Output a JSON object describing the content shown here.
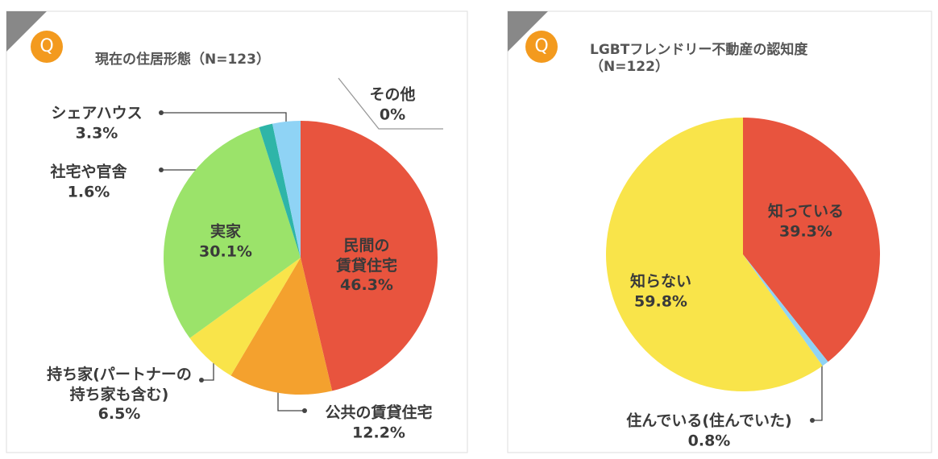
{
  "chart_data": [
    {
      "type": "pie",
      "badge": "Q",
      "title": "現在の住居形態（N=123）",
      "categories": [
        "民間の\n賃貸住宅",
        "公共の賃貸住宅",
        "持ち家(パートナーの\n持ち家も含む)",
        "実家",
        "社宅や官舎",
        "シェアハウス",
        "その他"
      ],
      "values": [
        46.3,
        12.2,
        6.5,
        30.1,
        1.6,
        3.3,
        0
      ],
      "value_labels": [
        "46.3%",
        "12.2%",
        "6.5%",
        "30.1%",
        "1.6%",
        "3.3%",
        "0%"
      ],
      "colors": [
        "#e8543e",
        "#f4a12e",
        "#f9e44a",
        "#9be36a",
        "#2eb5a8",
        "#8fd3f5",
        "#cccccc"
      ]
    },
    {
      "type": "pie",
      "badge": "Q",
      "title": "LGBTフレンドリー不動産の認知度\n（N=122）",
      "categories": [
        "知っている",
        "住んでいる(住んでいた)",
        "知らない"
      ],
      "values": [
        39.3,
        0.8,
        59.8
      ],
      "value_labels": [
        "39.3%",
        "0.8%",
        "59.8%"
      ],
      "colors": [
        "#e8543e",
        "#8fd3f5",
        "#f9e44a"
      ]
    }
  ]
}
